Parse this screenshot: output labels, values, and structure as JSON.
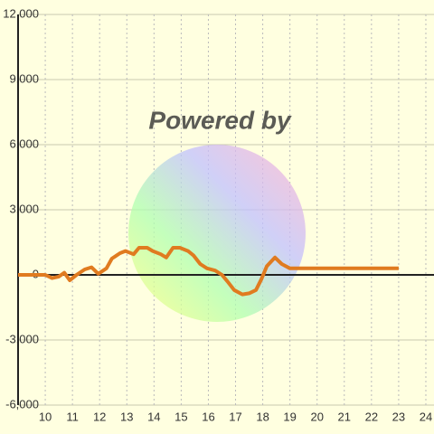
{
  "chart_data": {
    "type": "line",
    "watermark": "Powered by",
    "x": [
      9,
      10,
      10.25,
      10.5,
      10.7,
      10.9,
      11.15,
      11.45,
      11.7,
      11.95,
      12.25,
      12.45,
      12.75,
      12.95,
      13.25,
      13.45,
      13.75,
      13.95,
      14.25,
      14.45,
      14.7,
      14.95,
      15.25,
      15.45,
      15.7,
      15.95,
      16.25,
      16.5,
      16.7,
      16.95,
      17.25,
      17.5,
      17.75,
      17.95,
      18.15,
      18.45,
      18.7,
      19,
      23
    ],
    "series": [
      {
        "color": "#e07b20",
        "values": [
          0,
          0,
          -150,
          -80,
          100,
          -250,
          0,
          250,
          350,
          50,
          300,
          750,
          1000,
          1100,
          950,
          1250,
          1250,
          1100,
          950,
          800,
          1250,
          1250,
          1100,
          900,
          500,
          300,
          200,
          0,
          -300,
          -700,
          -900,
          -850,
          -700,
          -200,
          400,
          800,
          500,
          300,
          300
        ]
      }
    ],
    "xlim": [
      9,
      24.3
    ],
    "xticks": [
      10,
      11,
      12,
      13,
      14,
      15,
      16,
      17,
      18,
      19,
      20,
      21,
      22,
      23,
      24
    ],
    "ylim": [
      -6000,
      12000
    ],
    "yticks": [
      {
        "value": -6000,
        "label": "-6,000"
      },
      {
        "value": -3000,
        "label": "-3,000"
      },
      0,
      {
        "value": 3000,
        "label": "3,000"
      },
      {
        "value": 6000,
        "label": "6,000"
      },
      {
        "value": 9000,
        "label": "9,000"
      },
      {
        "value": 12000,
        "label": "12,000"
      }
    ],
    "grid": true
  }
}
